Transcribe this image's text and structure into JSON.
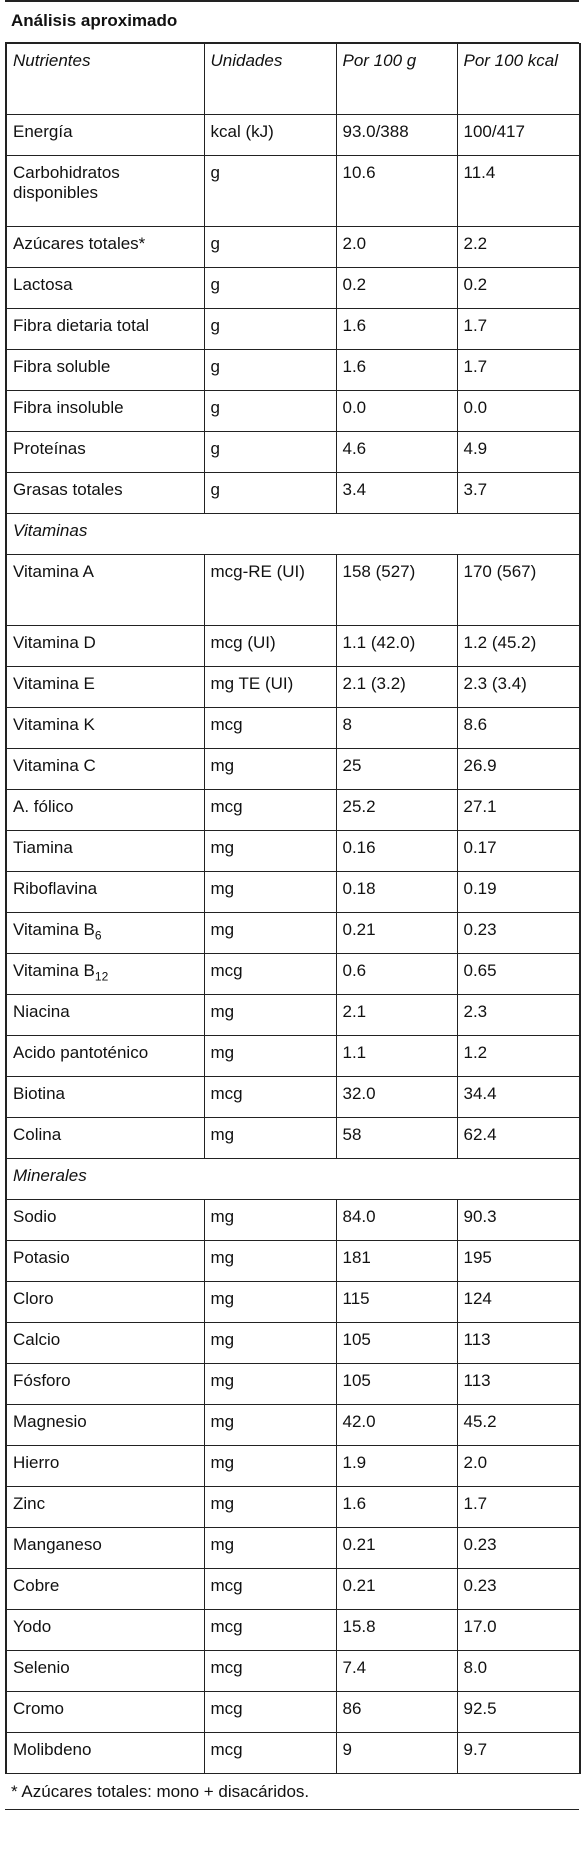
{
  "table": {
    "title": "Análisis aproximado",
    "header": [
      "Nutrientes",
      "Unidades",
      "Por 100 g",
      "Por 100 kcal"
    ],
    "rows": [
      {
        "cells": [
          "Energía",
          "kcal (kJ)",
          "93.0/388",
          "100/417"
        ]
      },
      {
        "cells": [
          "Carbohidratos disponibles",
          "g",
          "10.6",
          "11.4"
        ]
      },
      {
        "cells": [
          "Azúcares totales*",
          "g",
          "2.0",
          "2.2"
        ]
      },
      {
        "cells": [
          "Lactosa",
          "g",
          "0.2",
          "0.2"
        ]
      },
      {
        "cells": [
          "Fibra dietaria total",
          "g",
          "1.6",
          "1.7"
        ]
      },
      {
        "cells": [
          "Fibra soluble",
          "g",
          "1.6",
          "1.7"
        ]
      },
      {
        "cells": [
          "Fibra insoluble",
          "g",
          "0.0",
          "0.0"
        ]
      },
      {
        "cells": [
          "Proteínas",
          "g",
          "4.6",
          "4.9"
        ]
      },
      {
        "cells": [
          "Grasas totales",
          "g",
          "3.4",
          "3.7"
        ]
      },
      {
        "section": "Vitaminas"
      },
      {
        "cells": [
          "Vitamina A",
          "mcg-RE (UI)",
          "158 (527)",
          "170 (567)"
        ]
      },
      {
        "cells": [
          "Vitamina D",
          "mcg (UI)",
          "1.1 (42.0)",
          "1.2 (45.2)"
        ]
      },
      {
        "cells": [
          "Vitamina E",
          "mg TE (UI)",
          "2.1 (3.2)",
          "2.3 (3.4)"
        ]
      },
      {
        "cells": [
          "Vitamina K",
          "mcg",
          "8",
          "8.6"
        ]
      },
      {
        "cells": [
          "Vitamina C",
          "mg",
          "25",
          "26.9"
        ]
      },
      {
        "cells": [
          "A. fólico",
          "mcg",
          "25.2",
          "27.1"
        ]
      },
      {
        "cells": [
          "Tiamina",
          "mg",
          "0.16",
          "0.17"
        ]
      },
      {
        "cells": [
          "Riboflavina",
          "mg",
          "0.18",
          "0.19"
        ]
      },
      {
        "cells": [
          "Vitamina B",
          "mg",
          "0.21",
          "0.23"
        ],
        "sub": "6"
      },
      {
        "cells": [
          "Vitamina B",
          "mcg",
          "0.6",
          "0.65"
        ],
        "sub": "12"
      },
      {
        "cells": [
          "Niacina",
          "mg",
          "2.1",
          "2.3"
        ]
      },
      {
        "cells": [
          "Acido pantoténico",
          "mg",
          "1.1",
          "1.2"
        ]
      },
      {
        "cells": [
          "Biotina",
          "mcg",
          "32.0",
          "34.4"
        ]
      },
      {
        "cells": [
          "Colina",
          "mg",
          "58",
          "62.4"
        ]
      },
      {
        "section": "Minerales"
      },
      {
        "cells": [
          "Sodio",
          "mg",
          "84.0",
          "90.3"
        ]
      },
      {
        "cells": [
          "Potasio",
          "mg",
          "181",
          "195"
        ]
      },
      {
        "cells": [
          "Cloro",
          "mg",
          "115",
          "124"
        ]
      },
      {
        "cells": [
          "Calcio",
          "mg",
          "105",
          "113"
        ]
      },
      {
        "cells": [
          "Fósforo",
          "mg",
          "105",
          "113"
        ]
      },
      {
        "cells": [
          "Magnesio",
          "mg",
          "42.0",
          "45.2"
        ]
      },
      {
        "cells": [
          "Hierro",
          "mg",
          "1.9",
          "2.0"
        ]
      },
      {
        "cells": [
          "Zinc",
          "mg",
          "1.6",
          "1.7"
        ]
      },
      {
        "cells": [
          "Manganeso",
          "mg",
          "0.21",
          "0.23"
        ]
      },
      {
        "cells": [
          "Cobre",
          "mcg",
          "0.21",
          "0.23"
        ]
      },
      {
        "cells": [
          "Yodo",
          "mcg",
          "15.8",
          "17.0"
        ]
      },
      {
        "cells": [
          "Selenio",
          "mcg",
          "7.4",
          "8.0"
        ]
      },
      {
        "cells": [
          "Cromo",
          "mcg",
          "86",
          "92.5"
        ]
      },
      {
        "cells": [
          "Molibdeno",
          "mcg",
          "9",
          "9.7"
        ]
      }
    ],
    "footnote": "* Azúcares totales: mono + disacáridos."
  }
}
